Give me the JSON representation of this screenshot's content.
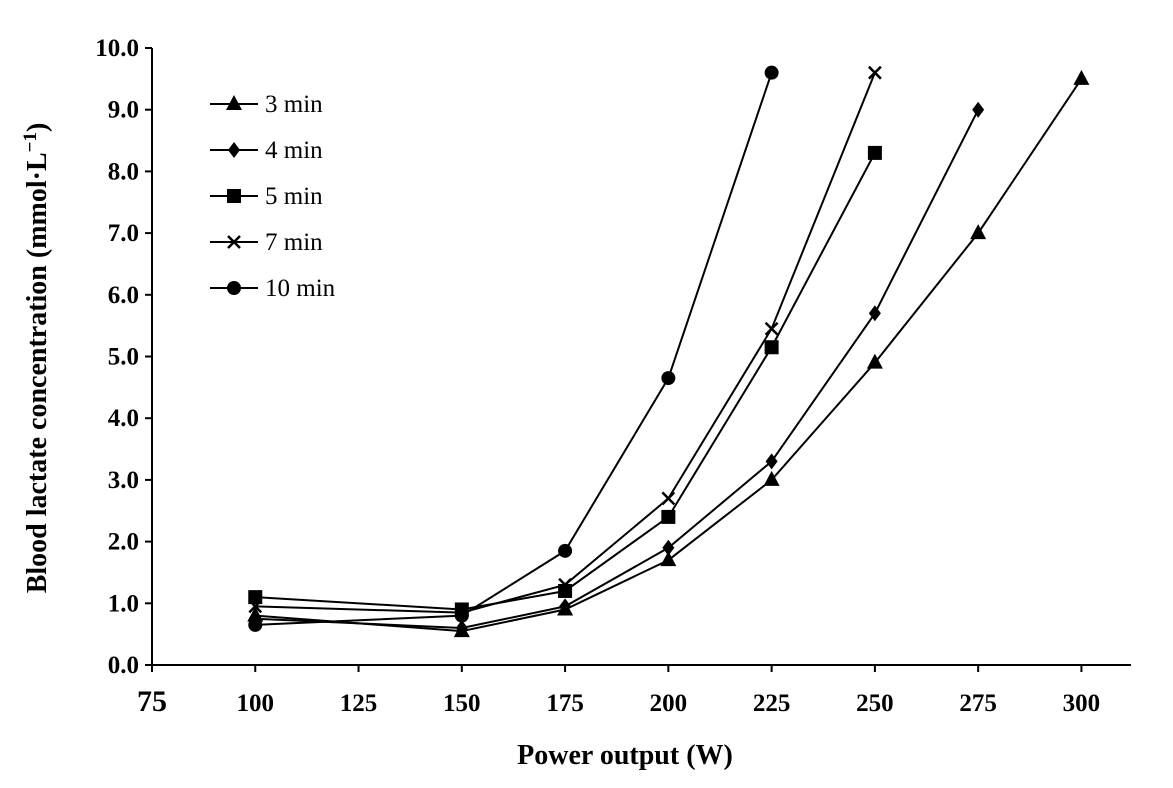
{
  "chart_data": {
    "type": "line",
    "title": "",
    "xlabel": "Power  output (W)",
    "ylabel": "Blood  lactate  concentration (mmol·L",
    "ylabel_superscript": "−1",
    "ylabel_close": ")",
    "xlim": [
      75,
      312
    ],
    "ylim": [
      0,
      10
    ],
    "xticks": [
      75,
      100,
      125,
      150,
      175,
      200,
      225,
      250,
      275,
      300
    ],
    "xtick_labels": [
      "75",
      "100",
      "125",
      "150",
      "175",
      "200",
      "225",
      "250",
      "275",
      "300"
    ],
    "yticks": [
      0,
      1,
      2,
      3,
      4,
      5,
      6,
      7,
      8,
      9,
      10
    ],
    "ytick_labels": [
      "0.0",
      "1.0",
      "2.0",
      "3.0",
      "4.0",
      "5.0",
      "6.0",
      "7.0",
      "8.0",
      "9.0",
      "10.0"
    ],
    "grid": false,
    "legend_position": "top-left",
    "series": [
      {
        "name": "3 min",
        "marker": "triangle",
        "x": [
          100,
          150,
          175,
          200,
          225,
          250,
          275,
          300
        ],
        "y": [
          0.8,
          0.55,
          0.9,
          1.7,
          3.0,
          4.9,
          7.0,
          9.5
        ]
      },
      {
        "name": "4 min",
        "marker": "diamond",
        "x": [
          100,
          150,
          175,
          200,
          225,
          250,
          275
        ],
        "y": [
          0.75,
          0.6,
          0.95,
          1.9,
          3.3,
          5.7,
          9.0
        ]
      },
      {
        "name": "5 min",
        "marker": "square",
        "x": [
          100,
          150,
          175,
          200,
          225,
          250
        ],
        "y": [
          1.1,
          0.9,
          1.2,
          2.4,
          5.15,
          8.3
        ]
      },
      {
        "name": "7 min",
        "marker": "x",
        "x": [
          100,
          150,
          175,
          200,
          225,
          250
        ],
        "y": [
          0.95,
          0.85,
          1.3,
          2.7,
          5.45,
          9.6
        ]
      },
      {
        "name": "10 min",
        "marker": "circle",
        "x": [
          100,
          150,
          175,
          200,
          225
        ],
        "y": [
          0.65,
          0.8,
          1.85,
          4.65,
          9.6
        ]
      }
    ]
  }
}
